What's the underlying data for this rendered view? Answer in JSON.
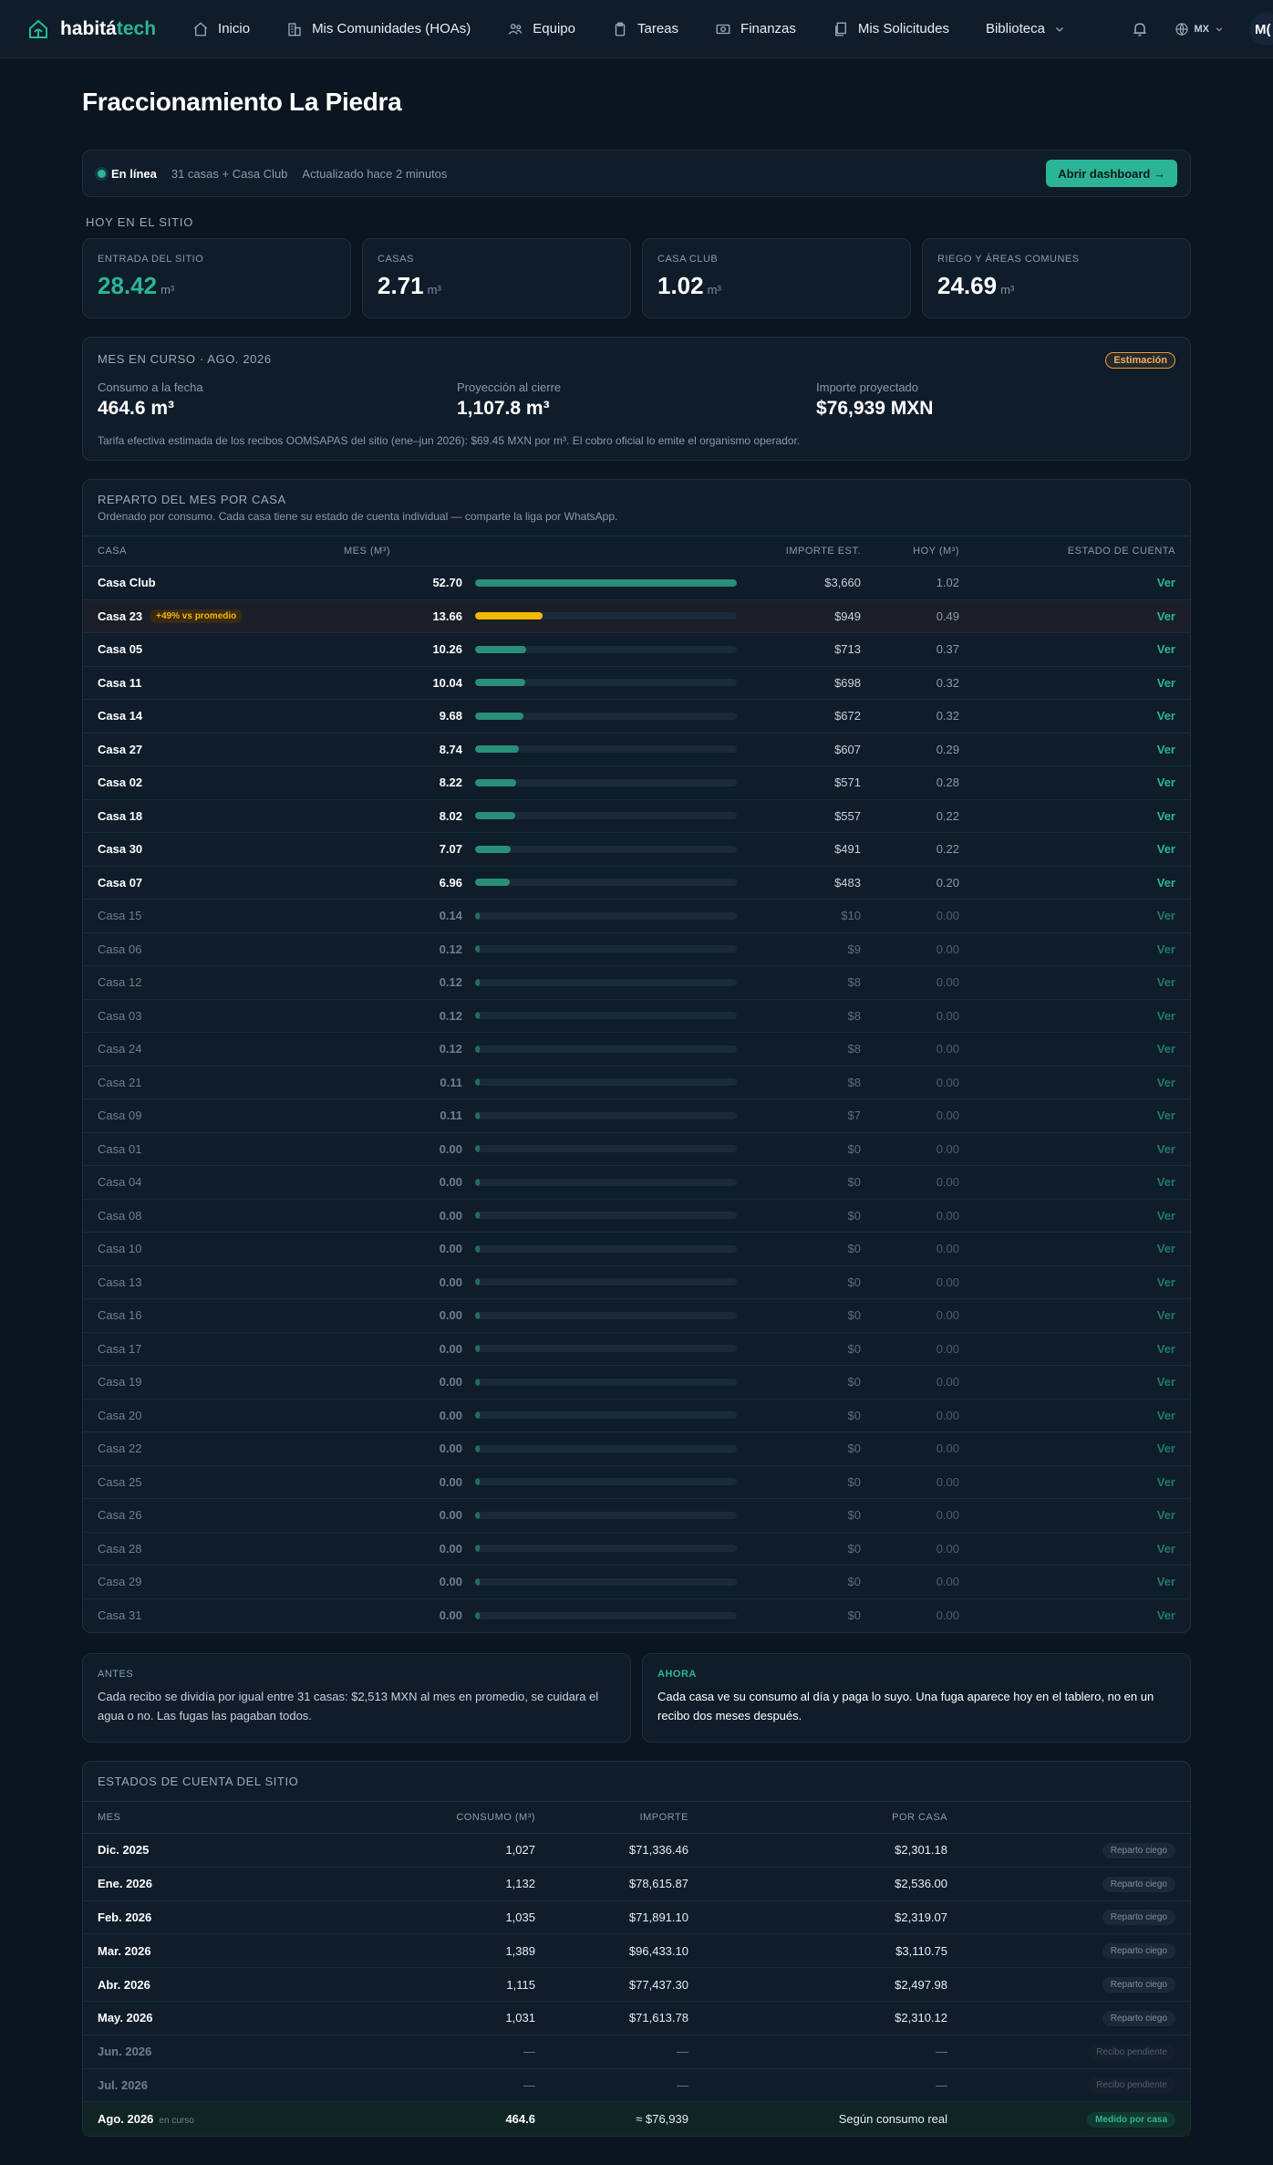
{
  "nav": {
    "logo_a": "habitá",
    "logo_b": "tech",
    "items": [
      {
        "label": "Inicio",
        "icon": "home-icon"
      },
      {
        "label": "Mis Comunidades (HOAs)",
        "icon": "buildings-icon"
      },
      {
        "label": "Equipo",
        "icon": "team-icon"
      },
      {
        "label": "Tareas",
        "icon": "clipboard-icon"
      },
      {
        "label": "Finanzas",
        "icon": "money-icon"
      },
      {
        "label": "Mis Solicitudes",
        "icon": "documents-icon"
      },
      {
        "label": "Biblioteca",
        "icon": "chevron-down-icon"
      }
    ],
    "lang": "MX",
    "avatar": "M("
  },
  "page": {
    "title": "Fraccionamiento La Piedra"
  },
  "status": {
    "online": "En línea",
    "units": "31 casas + Casa Club",
    "updated": "Actualizado hace 2 minutos",
    "button": "Abrir dashboard →"
  },
  "today": {
    "label": "HOY EN EL SITIO",
    "unit": "m³",
    "cards": [
      {
        "label": "ENTRADA DEL SITIO",
        "value": "28.42"
      },
      {
        "label": "CASAS",
        "value": "2.71"
      },
      {
        "label": "CASA CLUB",
        "value": "1.02"
      },
      {
        "label": "RIEGO Y ÁREAS COMUNES",
        "value": "24.69"
      }
    ]
  },
  "month": {
    "title": "MES EN CURSO · AGO. 2026",
    "badge": "Estimación",
    "cols": [
      {
        "label": "Consumo a la fecha",
        "value": "464.6 m³"
      },
      {
        "label": "Proyección al cierre",
        "value": "1,107.8 m³"
      },
      {
        "label": "Importe proyectado",
        "value": "$76,939 MXN"
      }
    ],
    "note": "Tarifa efectiva estimada de los recibos OOMSAPAS del sitio (ene–jun 2026): $69.45 MXN por m³. El cobro oficial lo emite el organismo operador."
  },
  "reparto": {
    "title": "REPARTO DEL MES POR CASA",
    "subtitle": "Ordenado por consumo. Cada casa tiene su estado de cuenta individual — comparte la liga por WhatsApp.",
    "headers": {
      "casa": "CASA",
      "mes": "MES (M³)",
      "importe": "IMPORTE EST.",
      "hoy": "HOY (M³)",
      "estado": "ESTADO DE CUENTA"
    },
    "ver": "Ver",
    "max": 52.7,
    "rows": [
      {
        "name": "Casa Club",
        "mes": 52.7,
        "importe": "$3,660",
        "hoy": "1.02",
        "active": true
      },
      {
        "name": "Casa 23",
        "mes": 13.66,
        "importe": "$949",
        "hoy": "0.49",
        "active": true,
        "alert": "+49% vs promedio"
      },
      {
        "name": "Casa 05",
        "mes": 10.26,
        "importe": "$713",
        "hoy": "0.37",
        "active": true
      },
      {
        "name": "Casa 11",
        "mes": 10.04,
        "importe": "$698",
        "hoy": "0.32",
        "active": true
      },
      {
        "name": "Casa 14",
        "mes": 9.68,
        "importe": "$672",
        "hoy": "0.32",
        "active": true
      },
      {
        "name": "Casa 27",
        "mes": 8.74,
        "importe": "$607",
        "hoy": "0.29",
        "active": true
      },
      {
        "name": "Casa 02",
        "mes": 8.22,
        "importe": "$571",
        "hoy": "0.28",
        "active": true
      },
      {
        "name": "Casa 18",
        "mes": 8.02,
        "importe": "$557",
        "hoy": "0.22",
        "active": true
      },
      {
        "name": "Casa 30",
        "mes": 7.07,
        "importe": "$491",
        "hoy": "0.22",
        "active": true
      },
      {
        "name": "Casa 07",
        "mes": 6.96,
        "importe": "$483",
        "hoy": "0.20",
        "active": true
      },
      {
        "name": "Casa 15",
        "mes": 0.14,
        "importe": "$10",
        "hoy": "0.00",
        "active": false
      },
      {
        "name": "Casa 06",
        "mes": 0.12,
        "importe": "$9",
        "hoy": "0.00",
        "active": false
      },
      {
        "name": "Casa 12",
        "mes": 0.12,
        "importe": "$8",
        "hoy": "0.00",
        "active": false
      },
      {
        "name": "Casa 03",
        "mes": 0.12,
        "importe": "$8",
        "hoy": "0.00",
        "active": false
      },
      {
        "name": "Casa 24",
        "mes": 0.12,
        "importe": "$8",
        "hoy": "0.00",
        "active": false
      },
      {
        "name": "Casa 21",
        "mes": 0.11,
        "importe": "$8",
        "hoy": "0.00",
        "active": false
      },
      {
        "name": "Casa 09",
        "mes": 0.11,
        "importe": "$7",
        "hoy": "0.00",
        "active": false
      },
      {
        "name": "Casa 01",
        "mes": 0.0,
        "importe": "$0",
        "hoy": "0.00",
        "active": false
      },
      {
        "name": "Casa 04",
        "mes": 0.0,
        "importe": "$0",
        "hoy": "0.00",
        "active": false
      },
      {
        "name": "Casa 08",
        "mes": 0.0,
        "importe": "$0",
        "hoy": "0.00",
        "active": false
      },
      {
        "name": "Casa 10",
        "mes": 0.0,
        "importe": "$0",
        "hoy": "0.00",
        "active": false
      },
      {
        "name": "Casa 13",
        "mes": 0.0,
        "importe": "$0",
        "hoy": "0.00",
        "active": false
      },
      {
        "name": "Casa 16",
        "mes": 0.0,
        "importe": "$0",
        "hoy": "0.00",
        "active": false
      },
      {
        "name": "Casa 17",
        "mes": 0.0,
        "importe": "$0",
        "hoy": "0.00",
        "active": false
      },
      {
        "name": "Casa 19",
        "mes": 0.0,
        "importe": "$0",
        "hoy": "0.00",
        "active": false
      },
      {
        "name": "Casa 20",
        "mes": 0.0,
        "importe": "$0",
        "hoy": "0.00",
        "active": false
      },
      {
        "name": "Casa 22",
        "mes": 0.0,
        "importe": "$0",
        "hoy": "0.00",
        "active": false
      },
      {
        "name": "Casa 25",
        "mes": 0.0,
        "importe": "$0",
        "hoy": "0.00",
        "active": false
      },
      {
        "name": "Casa 26",
        "mes": 0.0,
        "importe": "$0",
        "hoy": "0.00",
        "active": false
      },
      {
        "name": "Casa 28",
        "mes": 0.0,
        "importe": "$0",
        "hoy": "0.00",
        "active": false
      },
      {
        "name": "Casa 29",
        "mes": 0.0,
        "importe": "$0",
        "hoy": "0.00",
        "active": false
      },
      {
        "name": "Casa 31",
        "mes": 0.0,
        "importe": "$0",
        "hoy": "0.00",
        "active": false
      }
    ]
  },
  "before_after": {
    "antes_label": "ANTES",
    "antes_text": "Cada recibo se dividía por igual entre 31 casas: $2,513 MXN al mes en promedio, se cuidara el agua o no. Las fugas las pagaban todos.",
    "ahora_label": "AHORA",
    "ahora_text": "Cada casa ve su consumo al día y paga lo suyo. Una fuga aparece hoy en el tablero, no en un recibo dos meses después."
  },
  "cuenta": {
    "title": "ESTADOS DE CUENTA DEL SITIO",
    "headers": {
      "mes": "MES",
      "consumo": "CONSUMO (M³)",
      "importe": "IMPORTE",
      "por_casa": "POR CASA"
    },
    "rows": [
      {
        "mes": "Dic. 2025",
        "consumo": "1,027",
        "importe": "$71,336.46",
        "por_casa": "$2,301.18",
        "status": "Reparto ciego",
        "kind": "blind"
      },
      {
        "mes": "Ene. 2026",
        "consumo": "1,132",
        "importe": "$78,615.87",
        "por_casa": "$2,536.00",
        "status": "Reparto ciego",
        "kind": "blind"
      },
      {
        "mes": "Feb. 2026",
        "consumo": "1,035",
        "importe": "$71,891.10",
        "por_casa": "$2,319.07",
        "status": "Reparto ciego",
        "kind": "blind"
      },
      {
        "mes": "Mar. 2026",
        "consumo": "1,389",
        "importe": "$96,433.10",
        "por_casa": "$3,110.75",
        "status": "Reparto ciego",
        "kind": "blind"
      },
      {
        "mes": "Abr. 2026",
        "consumo": "1,115",
        "importe": "$77,437.30",
        "por_casa": "$2,497.98",
        "status": "Reparto ciego",
        "kind": "blind"
      },
      {
        "mes": "May. 2026",
        "consumo": "1,031",
        "importe": "$71,613.78",
        "por_casa": "$2,310.12",
        "status": "Reparto ciego",
        "kind": "blind"
      },
      {
        "mes": "Jun. 2026",
        "consumo": "—",
        "importe": "—",
        "por_casa": "—",
        "status": "Recibo pendiente",
        "kind": "pend"
      },
      {
        "mes": "Jul. 2026",
        "consumo": "—",
        "importe": "—",
        "por_casa": "—",
        "status": "Recibo pendiente",
        "kind": "pend"
      },
      {
        "mes": "Ago. 2026",
        "tag": "en curso",
        "consumo": "464.6",
        "importe": "≈ $76,939",
        "por_casa": "Según consumo real",
        "status": "Medido por casa",
        "kind": "measured"
      }
    ]
  }
}
